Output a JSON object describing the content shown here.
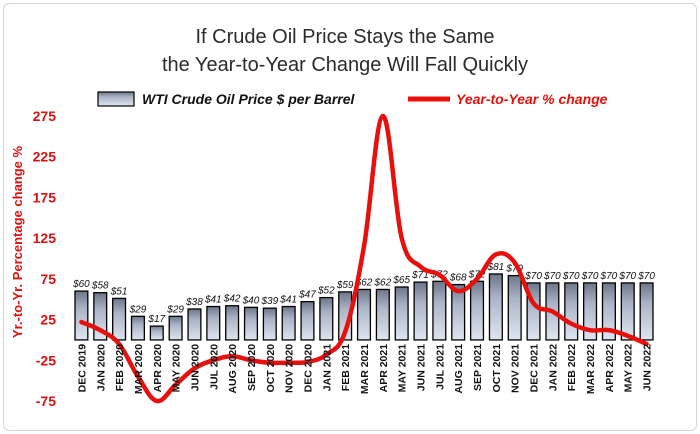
{
  "chart_data": {
    "type": "bar+line",
    "title_line1": "If Crude Oil Price Stays the Same",
    "title_line2": "the Year-to-Year Change Will Fall Quickly",
    "ylabel": "Yr.-to-Yr. Percentage change %",
    "ylim": [
      -75,
      275
    ],
    "yticks": [
      "275",
      "225",
      "175",
      "125",
      "75",
      "25",
      "-25",
      "-75"
    ],
    "ytick_values": [
      275,
      225,
      175,
      125,
      75,
      25,
      -25,
      -75
    ],
    "legend": {
      "bars": "WTI Crude Oil Price $ per Barrel",
      "line": "Year-to-Year % change",
      "position": "top"
    },
    "colors": {
      "line": "#e8100d",
      "bar_fill_top": "#6d7688",
      "bar_fill_bottom": "#d5dcea",
      "axis_text": "#e01010"
    },
    "categories": [
      "DEC 2019",
      "JAN 2020",
      "FEB 2020",
      "MAR 2020",
      "APR 2020",
      "MAY 2020",
      "JUN 2020",
      "JUL 2020",
      "AUG 2020",
      "SEP 2020",
      "OCT 2020",
      "NOV 2020",
      "DEC 2020",
      "JAN 2021",
      "FEB 2021",
      "MAR 2021",
      "APR 2021",
      "MAY 2021",
      "JUN 2021",
      "JUL 2021",
      "AUG 2021",
      "SEP 2021",
      "OCT 2021",
      "NOV 2021",
      "DEC 2021",
      "JAN 2022",
      "FEB 2022",
      "MAR 2022",
      "APR 2022",
      "MAY 2022",
      "JUN 2022"
    ],
    "bar_series": {
      "name": "WTI Crude Oil Price $ per Barrel",
      "values": [
        60,
        58,
        51,
        29,
        17,
        29,
        38,
        41,
        42,
        40,
        39,
        41,
        47,
        52,
        59,
        62,
        62,
        65,
        71,
        72,
        68,
        72,
        81,
        79,
        70,
        70,
        70,
        70,
        70,
        70,
        70
      ],
      "labels": [
        "$60",
        "$58",
        "$51",
        "$29",
        "$17",
        "$29",
        "$38",
        "$41",
        "$42",
        "$40",
        "$39",
        "$41",
        "$47",
        "$52",
        "$59",
        "$62",
        "$62",
        "$65",
        "$71",
        "$72",
        "$68",
        "$72",
        "$81",
        "$79",
        "$70",
        "$70",
        "$70",
        "$70",
        "$70",
        "$70",
        "$70"
      ]
    },
    "line_series": {
      "name": "Year-to-Year % change",
      "values": [
        22,
        12,
        -5,
        -45,
        -75,
        -55,
        -35,
        -25,
        -20,
        -25,
        -28,
        -28,
        -27,
        -18,
        10,
        115,
        275,
        125,
        90,
        80,
        60,
        75,
        105,
        95,
        45,
        35,
        20,
        12,
        12,
        5,
        -5
      ]
    }
  }
}
